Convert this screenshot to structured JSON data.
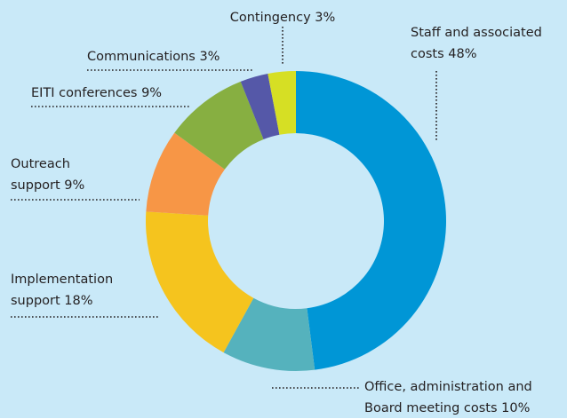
{
  "chart_data": {
    "type": "donut",
    "categories": [
      "Staff and associated costs",
      "Office, administration and Board meeting costs",
      "Implementation support",
      "Outreach support",
      "EITI conferences",
      "Communications",
      "Contingency"
    ],
    "values": [
      48,
      10,
      18,
      9,
      9,
      3,
      3
    ],
    "value_labels": [
      "48%",
      "10%",
      "18%",
      "9%",
      "9%",
      "3%",
      "3%"
    ],
    "colors": [
      "#0096d6",
      "#55b2bd",
      "#f5c41e",
      "#f79646",
      "#87af41",
      "#5558a8",
      "#d6df24"
    ]
  }
}
